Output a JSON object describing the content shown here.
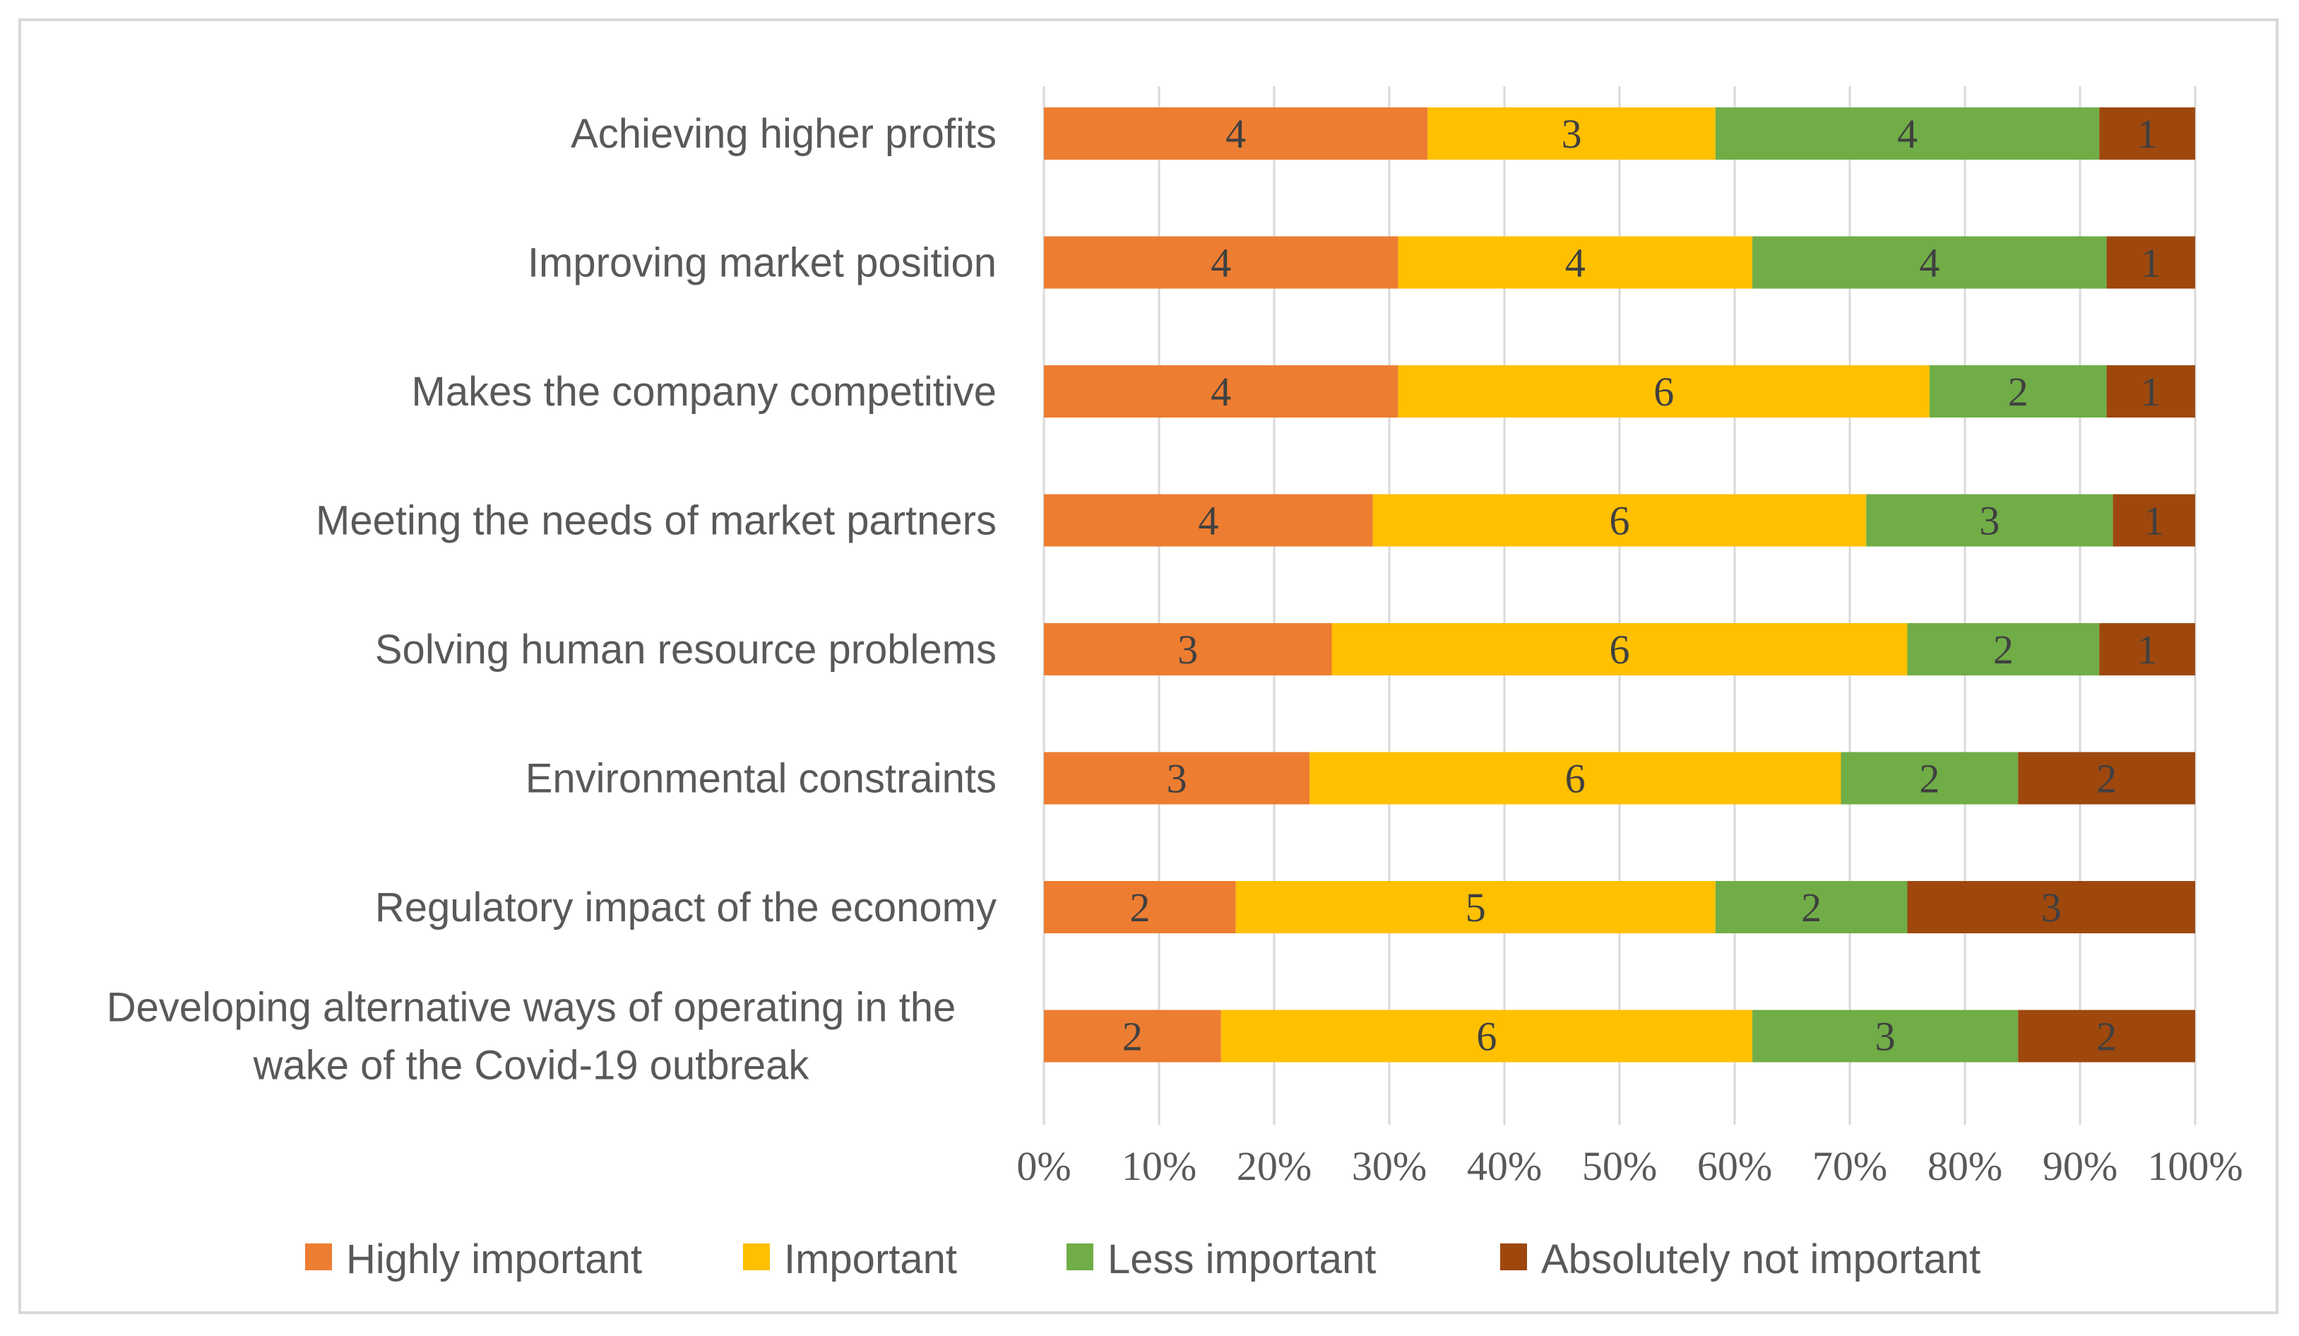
{
  "chart_data": {
    "type": "bar",
    "orientation": "horizontal",
    "stacked": "percent",
    "title": "",
    "xlabel": "",
    "ylabel": "",
    "xlim": [
      0,
      100
    ],
    "x_ticks": [
      "0%",
      "10%",
      "20%",
      "30%",
      "40%",
      "50%",
      "60%",
      "70%",
      "80%",
      "90%",
      "100%"
    ],
    "grid": true,
    "legend_position": "bottom",
    "categories": [
      "Achieving higher profits",
      "Improving market position",
      "Makes the company competitive",
      "Meeting the needs of market partners",
      "Solving human resource problems",
      "Environmental constraints",
      "Regulatory impact of the economy",
      "Developing alternative ways of operating in the wake of the Covid-19 outbreak"
    ],
    "category_lines": [
      [
        "Achieving higher profits"
      ],
      [
        "Improving market position"
      ],
      [
        "Makes the company competitive"
      ],
      [
        "Meeting the needs of market partners"
      ],
      [
        "Solving human resource problems"
      ],
      [
        "Environmental constraints"
      ],
      [
        "Regulatory impact of the economy"
      ],
      [
        "Developing alternative ways of operating in the",
        "wake of the Covid-19 outbreak"
      ]
    ],
    "series": [
      {
        "name": "Highly important",
        "color": "#ED7D31",
        "values": [
          4,
          4,
          4,
          4,
          3,
          3,
          2,
          2
        ]
      },
      {
        "name": "Important",
        "color": "#FFC000",
        "values": [
          3,
          4,
          6,
          6,
          6,
          6,
          5,
          6
        ]
      },
      {
        "name": "Less important",
        "color": "#70AD47",
        "values": [
          4,
          4,
          2,
          3,
          2,
          2,
          2,
          3
        ]
      },
      {
        "name": "Absolutely not important",
        "color": "#9E480E",
        "values": [
          1,
          1,
          1,
          1,
          1,
          2,
          3,
          2
        ]
      }
    ]
  }
}
